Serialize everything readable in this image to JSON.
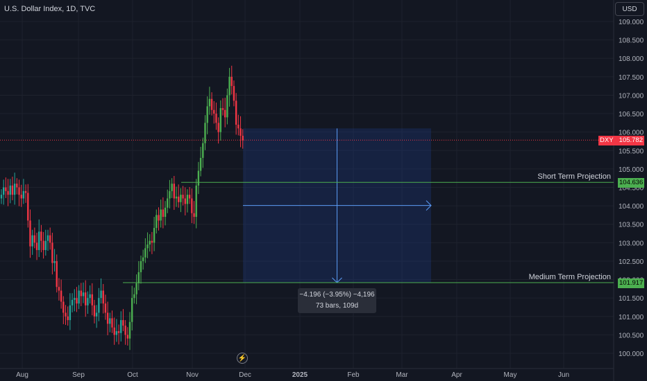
{
  "header": {
    "symbol_title": "U.S. Dollar Index, 1D, TVC",
    "currency_button": "USD"
  },
  "price_badges": {
    "symbol": "DXY",
    "last_price": "105.782",
    "short_projection_price": "104.636",
    "medium_projection_price": "101.917"
  },
  "projections": {
    "short_label": "Short Term Projection",
    "medium_label": "Medium Term Projection"
  },
  "measure": {
    "line1": "−4.196 (−3.95%) −4,196",
    "line2": "73 bars, 109d"
  },
  "colors": {
    "background": "#131722",
    "up": "#26a69a",
    "up_bright": "#4caf50",
    "down": "#f23645",
    "projection_line": "#4caf50",
    "measure_fill": "#1e3a8a",
    "measure_line": "#2962ff",
    "last_price_line": "#f23645"
  },
  "chart_data": {
    "type": "candlestick",
    "interval": "1D",
    "y_axis_labels": [
      "109.000",
      "108.500",
      "108.000",
      "107.500",
      "107.000",
      "106.500",
      "106.000",
      "105.500",
      "105.000",
      "104.500",
      "104.000",
      "103.500",
      "103.000",
      "102.500",
      "102.000",
      "101.500",
      "101.000",
      "100.500",
      "100.000"
    ],
    "x_axis_labels": [
      "Aug",
      "Sep",
      "Oct",
      "Nov",
      "Dec",
      "2025",
      "Feb",
      "Mar",
      "Apr",
      "May",
      "Jun"
    ],
    "ylim": [
      99.8,
      109.3
    ],
    "last_close": 105.782,
    "horizontal_levels": [
      {
        "name": "Short Term Projection",
        "value": 104.636
      },
      {
        "name": "Medium Term Projection",
        "value": 101.917
      }
    ],
    "closes": [
      104.3,
      104.5,
      104.4,
      104.3,
      104.55,
      104.3,
      104.6,
      104.5,
      104.3,
      104.2,
      104.4,
      104.35,
      103.6,
      102.9,
      103.2,
      103.0,
      102.8,
      103.3,
      103.05,
      102.8,
      103.05,
      103.2,
      103.0,
      102.45,
      102.5,
      101.8,
      101.7,
      101.4,
      101.1,
      101.0,
      100.9,
      101.3,
      101.45,
      101.5,
      101.35,
      101.7,
      101.55,
      101.65,
      101.3,
      101.5,
      101.6,
      101.3,
      101.0,
      101.1,
      101.5,
      101.7,
      101.35,
      101.1,
      100.8,
      100.95,
      100.7,
      100.5,
      100.6,
      100.55,
      100.9,
      100.75,
      100.5,
      100.4,
      100.85,
      101.5,
      101.6,
      101.9,
      102.2,
      102.5,
      102.6,
      102.85,
      102.95,
      103.05,
      103.0,
      103.4,
      103.75,
      103.6,
      103.9,
      103.7,
      103.95,
      104.2,
      104.4,
      104.6,
      104.2,
      104.25,
      104.1,
      104.3,
      104.2,
      104.05,
      104.3,
      104.2,
      103.8,
      103.7,
      104.55,
      104.95,
      105.3,
      105.7,
      106.25,
      106.7,
      106.9,
      106.6,
      106.5,
      106.25,
      106.0,
      106.65,
      106.6,
      106.4,
      107.0,
      107.5,
      107.25,
      106.85,
      106.2,
      106.1,
      105.9,
      105.78
    ],
    "measure": {
      "from_bar": 109,
      "bars": 73,
      "days": 109,
      "change": -4.196,
      "change_pct": -3.95,
      "top": 106.1,
      "bottom": 101.917
    }
  }
}
